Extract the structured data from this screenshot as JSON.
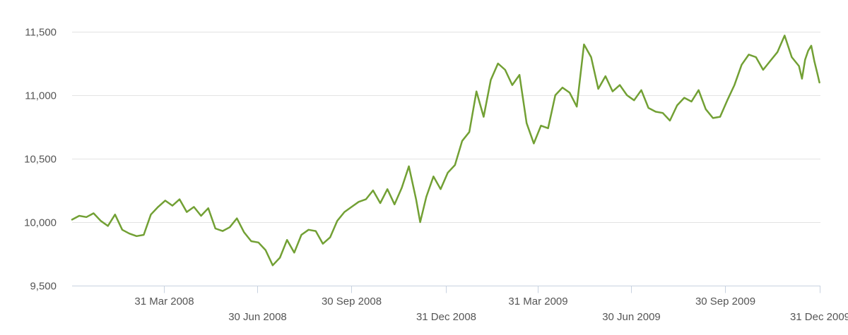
{
  "chart_data": {
    "type": "line",
    "title": "",
    "xlabel": "",
    "ylabel": "",
    "ylim": [
      9500,
      11600
    ],
    "xlim": [
      "2008-01-01",
      "2010-01-01"
    ],
    "grid": true,
    "legend": "none",
    "colors": {
      "line": "#72a034",
      "grid": "#e3e3e3",
      "axis": "#c8d2e0",
      "text": "#555555"
    },
    "y_ticks": [
      {
        "value": 9500,
        "label": "9,500"
      },
      {
        "value": 10000,
        "label": "10,000"
      },
      {
        "value": 10500,
        "label": "10,500"
      },
      {
        "value": 11000,
        "label": "11,000"
      },
      {
        "value": 11500,
        "label": "11,500"
      }
    ],
    "x_ticks": [
      {
        "date": "2008-03-31",
        "label": "31 Mar 2008",
        "row": 1
      },
      {
        "date": "2008-06-30",
        "label": "30 Jun 2008",
        "row": 2
      },
      {
        "date": "2008-09-30",
        "label": "30 Sep 2008",
        "row": 1
      },
      {
        "date": "2008-12-31",
        "label": "31 Dec 2008",
        "row": 2
      },
      {
        "date": "2009-03-31",
        "label": "31 Mar 2009",
        "row": 1
      },
      {
        "date": "2009-06-30",
        "label": "30 Jun 2009",
        "row": 2
      },
      {
        "date": "2009-09-30",
        "label": "30 Sep 2009",
        "row": 1
      },
      {
        "date": "2009-12-31",
        "label": "31 Dec 2009",
        "row": 2
      }
    ],
    "series": [
      {
        "points": [
          [
            "2008-01-01",
            10020
          ],
          [
            "2008-01-08",
            10050
          ],
          [
            "2008-01-15",
            10040
          ],
          [
            "2008-01-22",
            10070
          ],
          [
            "2008-01-29",
            10010
          ],
          [
            "2008-02-05",
            9970
          ],
          [
            "2008-02-12",
            10060
          ],
          [
            "2008-02-19",
            9940
          ],
          [
            "2008-02-26",
            9910
          ],
          [
            "2008-03-04",
            9890
          ],
          [
            "2008-03-11",
            9900
          ],
          [
            "2008-03-18",
            10060
          ],
          [
            "2008-03-25",
            10120
          ],
          [
            "2008-04-01",
            10170
          ],
          [
            "2008-04-08",
            10130
          ],
          [
            "2008-04-15",
            10180
          ],
          [
            "2008-04-22",
            10080
          ],
          [
            "2008-04-29",
            10120
          ],
          [
            "2008-05-06",
            10050
          ],
          [
            "2008-05-13",
            10110
          ],
          [
            "2008-05-20",
            9950
          ],
          [
            "2008-05-27",
            9930
          ],
          [
            "2008-06-03",
            9960
          ],
          [
            "2008-06-10",
            10030
          ],
          [
            "2008-06-17",
            9920
          ],
          [
            "2008-06-24",
            9850
          ],
          [
            "2008-07-01",
            9840
          ],
          [
            "2008-07-08",
            9780
          ],
          [
            "2008-07-15",
            9660
          ],
          [
            "2008-07-22",
            9720
          ],
          [
            "2008-07-29",
            9860
          ],
          [
            "2008-08-05",
            9760
          ],
          [
            "2008-08-12",
            9900
          ],
          [
            "2008-08-19",
            9940
          ],
          [
            "2008-08-26",
            9930
          ],
          [
            "2008-09-02",
            9830
          ],
          [
            "2008-09-09",
            9880
          ],
          [
            "2008-09-16",
            10010
          ],
          [
            "2008-09-23",
            10080
          ],
          [
            "2008-09-30",
            10120
          ],
          [
            "2008-10-07",
            10160
          ],
          [
            "2008-10-14",
            10180
          ],
          [
            "2008-10-21",
            10250
          ],
          [
            "2008-10-28",
            10150
          ],
          [
            "2008-11-04",
            10260
          ],
          [
            "2008-11-11",
            10140
          ],
          [
            "2008-11-18",
            10270
          ],
          [
            "2008-11-25",
            10440
          ],
          [
            "2008-12-02",
            10180
          ],
          [
            "2008-12-06",
            10000
          ],
          [
            "2008-12-12",
            10200
          ],
          [
            "2008-12-19",
            10360
          ],
          [
            "2008-12-26",
            10260
          ],
          [
            "2009-01-02",
            10390
          ],
          [
            "2009-01-09",
            10450
          ],
          [
            "2009-01-16",
            10640
          ],
          [
            "2009-01-23",
            10710
          ],
          [
            "2009-01-30",
            11030
          ],
          [
            "2009-02-06",
            10830
          ],
          [
            "2009-02-13",
            11120
          ],
          [
            "2009-02-20",
            11250
          ],
          [
            "2009-02-27",
            11200
          ],
          [
            "2009-03-06",
            11080
          ],
          [
            "2009-03-13",
            11160
          ],
          [
            "2009-03-20",
            10780
          ],
          [
            "2009-03-27",
            10620
          ],
          [
            "2009-04-03",
            10760
          ],
          [
            "2009-04-10",
            10740
          ],
          [
            "2009-04-17",
            11000
          ],
          [
            "2009-04-24",
            11060
          ],
          [
            "2009-05-01",
            11020
          ],
          [
            "2009-05-08",
            10910
          ],
          [
            "2009-05-15",
            11400
          ],
          [
            "2009-05-22",
            11300
          ],
          [
            "2009-05-29",
            11050
          ],
          [
            "2009-06-05",
            11150
          ],
          [
            "2009-06-12",
            11030
          ],
          [
            "2009-06-19",
            11080
          ],
          [
            "2009-06-26",
            11000
          ],
          [
            "2009-07-03",
            10960
          ],
          [
            "2009-07-10",
            11040
          ],
          [
            "2009-07-17",
            10900
          ],
          [
            "2009-07-24",
            10870
          ],
          [
            "2009-07-31",
            10860
          ],
          [
            "2009-08-07",
            10800
          ],
          [
            "2009-08-14",
            10920
          ],
          [
            "2009-08-21",
            10980
          ],
          [
            "2009-08-28",
            10950
          ],
          [
            "2009-09-04",
            11040
          ],
          [
            "2009-09-11",
            10890
          ],
          [
            "2009-09-18",
            10820
          ],
          [
            "2009-09-25",
            10830
          ],
          [
            "2009-10-02",
            10960
          ],
          [
            "2009-10-09",
            11080
          ],
          [
            "2009-10-16",
            11240
          ],
          [
            "2009-10-23",
            11320
          ],
          [
            "2009-10-30",
            11300
          ],
          [
            "2009-11-06",
            11200
          ],
          [
            "2009-11-13",
            11270
          ],
          [
            "2009-11-20",
            11340
          ],
          [
            "2009-11-27",
            11470
          ],
          [
            "2009-12-04",
            11300
          ],
          [
            "2009-12-11",
            11230
          ],
          [
            "2009-12-14",
            11130
          ],
          [
            "2009-12-17",
            11280
          ],
          [
            "2009-12-20",
            11350
          ],
          [
            "2009-12-23",
            11390
          ],
          [
            "2009-12-26",
            11270
          ],
          [
            "2009-12-29",
            11170
          ],
          [
            "2009-12-31",
            11100
          ]
        ]
      }
    ]
  }
}
